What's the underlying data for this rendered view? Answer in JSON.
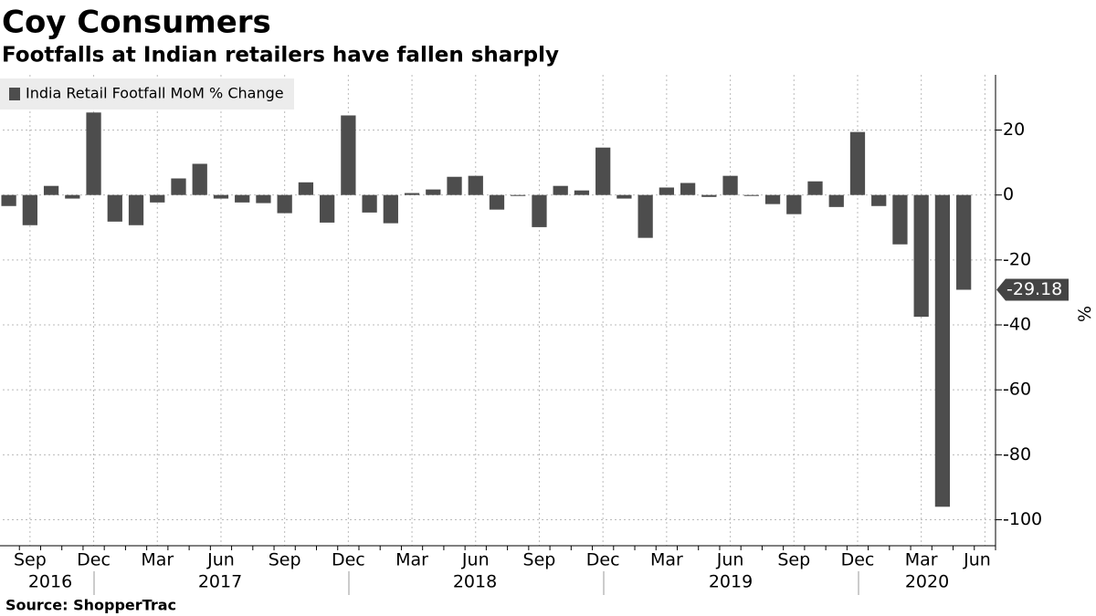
{
  "chart_data": {
    "type": "bar",
    "title": "Coy Consumers",
    "subtitle": "Footfalls at Indian retailers have fallen sharply",
    "source": "Source: ShopperTrac",
    "y_label": "%",
    "categories": [
      null,
      "Sep",
      null,
      null,
      "Dec",
      null,
      null,
      "Mar",
      null,
      null,
      "Jun",
      null,
      null,
      "Sep",
      null,
      null,
      "Dec",
      null,
      null,
      "Mar",
      null,
      null,
      "Jun",
      null,
      null,
      "Sep",
      null,
      null,
      "Dec",
      null,
      null,
      "Mar",
      null,
      null,
      "Jun",
      null,
      null,
      "Sep",
      null,
      null,
      "Dec",
      null,
      null,
      "Mar",
      null,
      null,
      "Jun"
    ],
    "years": [
      "2016",
      "2017",
      "2018",
      "2019",
      "2020"
    ],
    "series": [
      {
        "name": "India Retail Footfall MoM % Change",
        "color": "#4d4d4d",
        "values": [
          -3.4,
          -9.3,
          2.8,
          -1.1,
          25.4,
          -8.2,
          -9.3,
          -2.3,
          5.1,
          9.6,
          -1.1,
          -2.3,
          -2.5,
          -5.6,
          3.9,
          -8.5,
          24.5,
          -5.4,
          -8.7,
          0.6,
          1.7,
          5.6,
          5.9,
          -4.5,
          -0.3,
          -9.9,
          2.8,
          1.4,
          14.6,
          -1.1,
          -13.2,
          2.3,
          3.7,
          -0.6,
          5.9,
          -0.3,
          -2.8,
          -5.9,
          4.2,
          -3.7,
          19.4,
          -3.4,
          -15.2,
          -37.5,
          -96,
          -29.18,
          null
        ]
      }
    ],
    "ylim": [
      -108,
      37
    ],
    "yticks": [
      20,
      0,
      -20,
      -40,
      -60,
      -80,
      -100
    ],
    "grid": true,
    "legend": "top-left"
  }
}
